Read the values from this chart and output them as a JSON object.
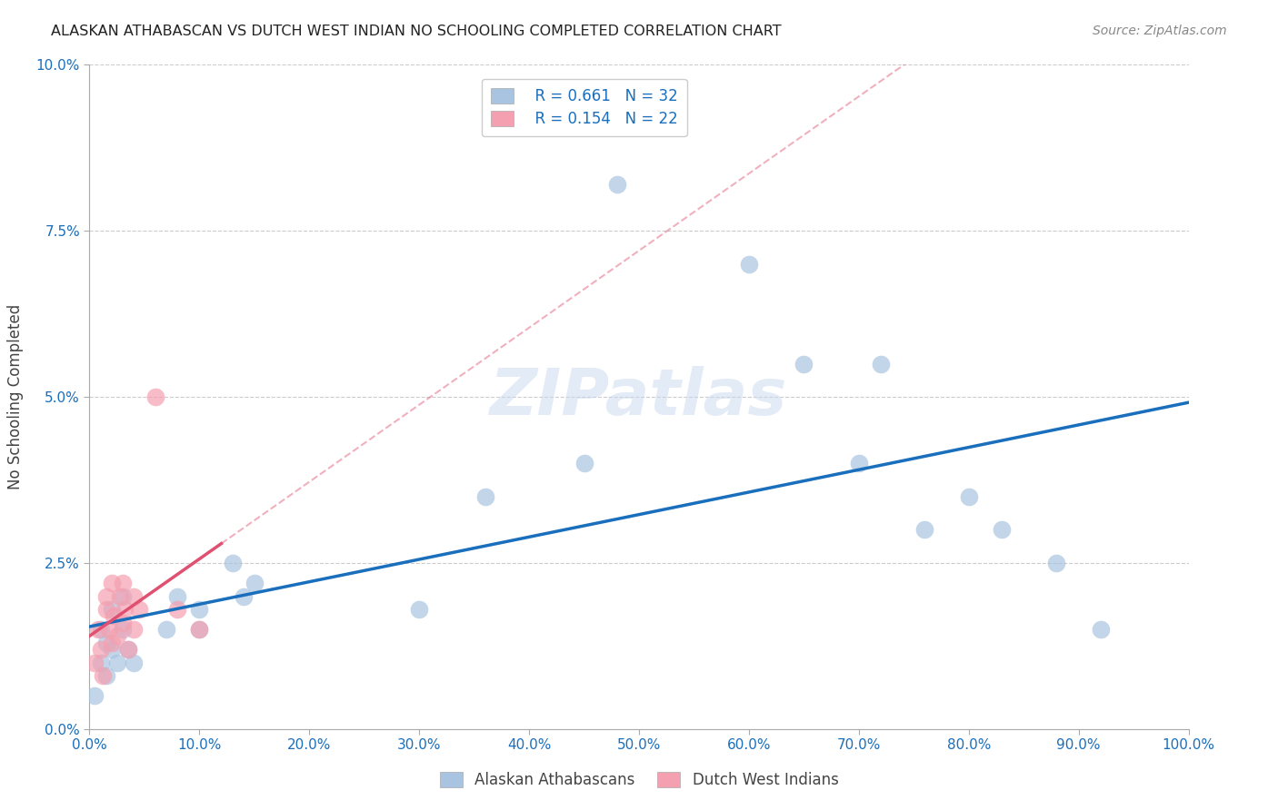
{
  "title": "ALASKAN ATHABASCAN VS DUTCH WEST INDIAN NO SCHOOLING COMPLETED CORRELATION CHART",
  "source": "Source: ZipAtlas.com",
  "ylabel_label": "No Schooling Completed",
  "xlim": [
    0,
    1.0
  ],
  "ylim": [
    0,
    0.1
  ],
  "xticks": [
    0.0,
    0.1,
    0.2,
    0.3,
    0.4,
    0.5,
    0.6,
    0.7,
    0.8,
    0.9,
    1.0
  ],
  "yticks": [
    0.0,
    0.025,
    0.05,
    0.075,
    0.1
  ],
  "blue_R": "0.661",
  "blue_N": "32",
  "pink_R": "0.154",
  "pink_N": "22",
  "legend_label_blue": "Alaskan Athabascans",
  "legend_label_pink": "Dutch West Indians",
  "blue_color": "#a8c4e0",
  "pink_color": "#f4a0b0",
  "blue_line_color": "#1a6fbd",
  "pink_line_color": "#e05070",
  "blue_scatter_x": [
    0.005,
    0.01,
    0.01,
    0.015,
    0.015,
    0.02,
    0.02,
    0.025,
    0.03,
    0.03,
    0.035,
    0.04,
    0.07,
    0.08,
    0.1,
    0.1,
    0.13,
    0.14,
    0.15,
    0.3,
    0.36,
    0.45,
    0.48,
    0.6,
    0.65,
    0.7,
    0.72,
    0.76,
    0.8,
    0.83,
    0.88,
    0.92
  ],
  "blue_scatter_y": [
    0.005,
    0.01,
    0.015,
    0.008,
    0.013,
    0.012,
    0.018,
    0.01,
    0.015,
    0.02,
    0.012,
    0.01,
    0.015,
    0.02,
    0.018,
    0.015,
    0.025,
    0.02,
    0.022,
    0.018,
    0.035,
    0.04,
    0.082,
    0.07,
    0.055,
    0.04,
    0.055,
    0.03,
    0.035,
    0.03,
    0.025,
    0.015
  ],
  "pink_scatter_x": [
    0.005,
    0.008,
    0.01,
    0.012,
    0.015,
    0.015,
    0.018,
    0.02,
    0.02,
    0.022,
    0.025,
    0.028,
    0.03,
    0.03,
    0.032,
    0.035,
    0.04,
    0.04,
    0.045,
    0.06,
    0.08,
    0.1
  ],
  "pink_scatter_y": [
    0.01,
    0.015,
    0.012,
    0.008,
    0.018,
    0.02,
    0.015,
    0.013,
    0.022,
    0.017,
    0.014,
    0.02,
    0.016,
    0.022,
    0.018,
    0.012,
    0.015,
    0.02,
    0.018,
    0.05,
    0.018,
    0.015
  ],
  "watermark": "ZIPatlas",
  "background_color": "#ffffff",
  "grid_color": "#cccccc"
}
